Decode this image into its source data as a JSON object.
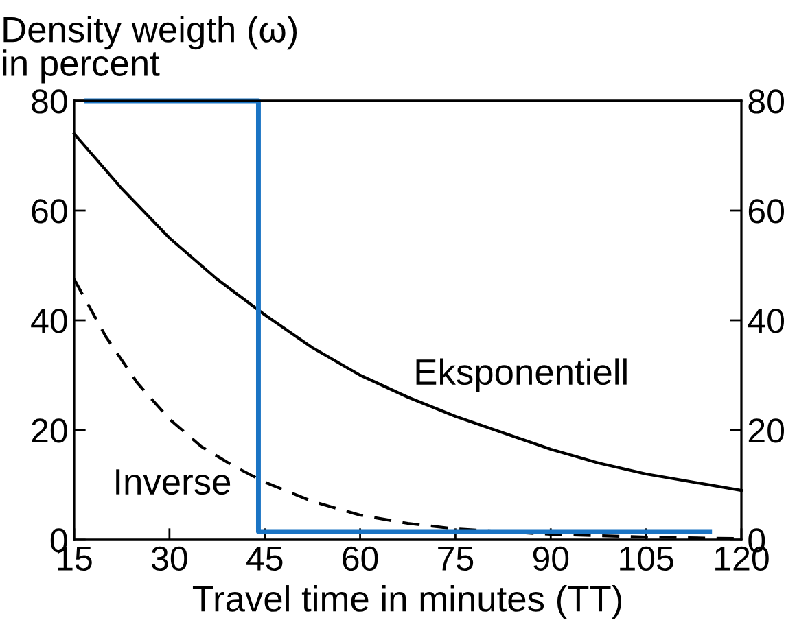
{
  "chart_data": {
    "type": "line",
    "ylabel": "Density weigth (ω)\nin percent",
    "xlabel": "Travel time in minutes (TT)",
    "xlim": [
      15,
      120
    ],
    "xticks": [
      15,
      30,
      45,
      60,
      75,
      90,
      105,
      120
    ],
    "ylim": [
      0,
      80
    ],
    "yticks": [
      0,
      20,
      40,
      60,
      80
    ],
    "y2lim": [
      0,
      80
    ],
    "y2ticks": [
      0,
      20,
      40,
      60,
      80
    ],
    "grid": false,
    "legend": false,
    "marker": "none",
    "series": [
      {
        "color": "#000000",
        "line_style": "solid",
        "x": [
          15,
          22.5,
          30,
          37.5,
          45,
          52.5,
          60,
          67.5,
          75,
          82.5,
          90,
          97.5,
          105,
          112.5,
          120
        ],
        "values": [
          74,
          64,
          55,
          47.5,
          41,
          35,
          30,
          26,
          22.5,
          19.5,
          16.5,
          14,
          12,
          10.5,
          9
        ]
      },
      {
        "color": "#000000",
        "line_style": "dashed",
        "x": [
          15,
          20,
          25,
          30,
          35,
          40,
          45,
          52.5,
          60,
          67.5,
          75,
          90,
          105,
          120
        ],
        "values": [
          47.5,
          37,
          28.5,
          22,
          17,
          13.5,
          10.5,
          7,
          4.5,
          3,
          2,
          1,
          0.5,
          0.2
        ]
      },
      {
        "color": "#1a74c4",
        "line_style": "solid",
        "x": [
          17,
          44,
          44,
          115
        ],
        "values": [
          80,
          80,
          1.5,
          1.5
        ]
      }
    ],
    "annotations": [
      "Eksponentiell",
      "Inverse"
    ]
  }
}
